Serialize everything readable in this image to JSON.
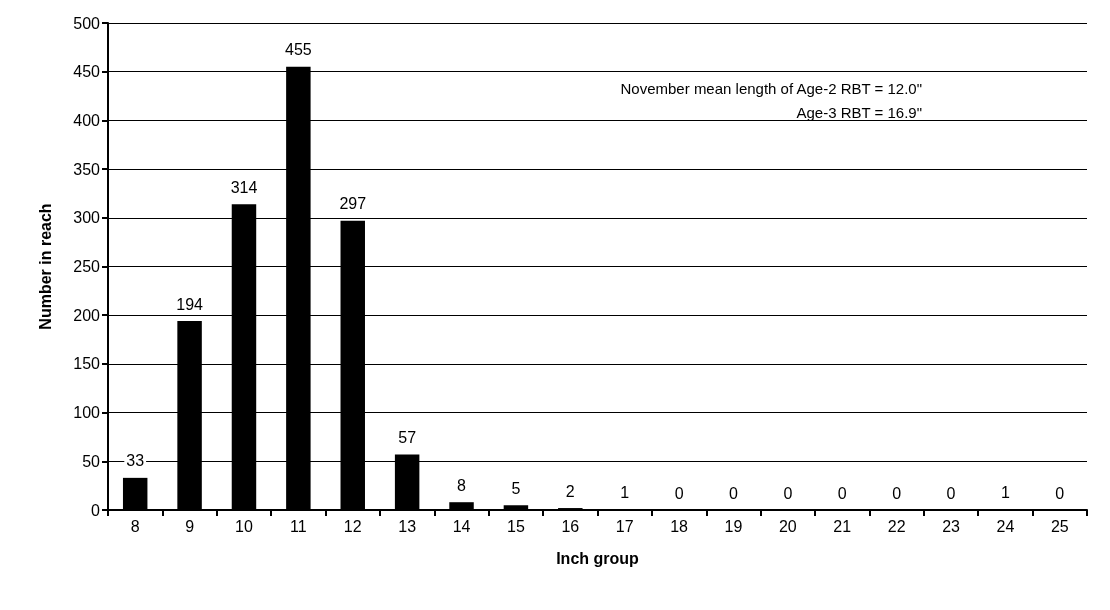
{
  "chart_data": {
    "type": "bar",
    "xlabel": "Inch group",
    "ylabel": "Number in reach",
    "categories": [
      "8",
      "9",
      "10",
      "11",
      "12",
      "13",
      "14",
      "15",
      "16",
      "17",
      "18",
      "19",
      "20",
      "21",
      "22",
      "23",
      "24",
      "25"
    ],
    "values": [
      33,
      194,
      314,
      455,
      297,
      57,
      8,
      5,
      2,
      1,
      0,
      0,
      0,
      0,
      0,
      0,
      1,
      0
    ],
    "color": "#000000",
    "ylim": [
      0,
      500
    ],
    "yticks": [
      0,
      50,
      100,
      150,
      200,
      250,
      300,
      350,
      400,
      450,
      500
    ],
    "grid": "y",
    "data_labels": true,
    "annotations": [
      "November mean length of Age-2 RBT = 12.0\"",
      "Age-3 RBT = 16.9\""
    ]
  }
}
